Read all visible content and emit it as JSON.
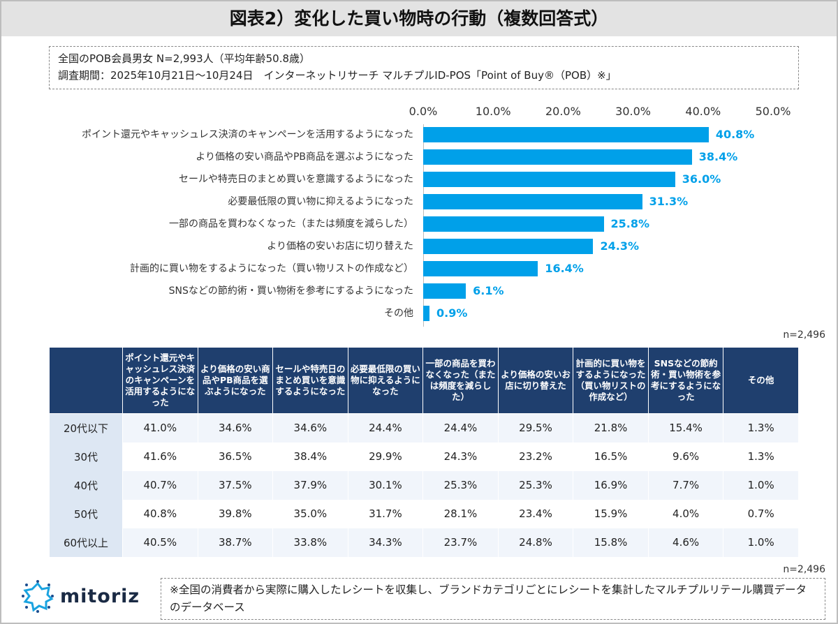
{
  "title": "図表2）変化した買い物時の行動（複数回答式）",
  "info": {
    "line1": "全国のPOB会員男女 N=2,993人（平均年齢50.8歳）",
    "line2": "調査期間：2025年10月21日～10月24日　インターネットリサーチ マルチプルID-POS「Point of Buy®（POB）※」"
  },
  "chart_data": {
    "type": "bar",
    "orientation": "horizontal",
    "categories": [
      "ポイント還元やキャッシュレス決済のキャンペーンを活用するようになった",
      "より価格の安い商品やPB商品を選ぶようになった",
      "セールや特売日のまとめ買いを意識するようになった",
      "必要最低限の買い物に抑えるようになった",
      "一部の商品を買わなくなった（または頻度を減らした）",
      "より価格の安いお店に切り替えた",
      "計画的に買い物をするようになった（買い物リストの作成など）",
      "SNSなどの節約術・買い物術を参考にするようになった",
      "その他"
    ],
    "values": [
      40.8,
      38.4,
      36.0,
      31.3,
      25.8,
      24.3,
      16.4,
      6.1,
      0.9
    ],
    "value_labels": [
      "40.8%",
      "38.4%",
      "36.0%",
      "31.3%",
      "25.8%",
      "24.3%",
      "16.4%",
      "6.1%",
      "0.9%"
    ],
    "ticks": [
      "0.0%",
      "10.0%",
      "20.0%",
      "30.0%",
      "40.0%",
      "50.0%"
    ],
    "xlim": [
      0,
      50
    ],
    "axis_position": "top",
    "color": "#00a0e9",
    "note": "n=2,496"
  },
  "table": {
    "headers": [
      "",
      "ポイント還元やキャッシュレス決済のキャンペーンを活用するようになった",
      "より価格の安い商品やPB商品を選ぶようになった",
      "セールや特売日のまとめ買いを意識するようになった",
      "必要最低限の買い物に抑えるようになった",
      "一部の商品を買わなくなった（または頻度を減らした）",
      "より価格の安いお店に切り替えた",
      "計画的に買い物をするようになった（買い物リストの作成など）",
      "SNSなどの節約術・買い物術を参考にするようになった",
      "その他"
    ],
    "rows": [
      [
        "20代以下",
        "41.0%",
        "34.6%",
        "34.6%",
        "24.4%",
        "24.4%",
        "29.5%",
        "21.8%",
        "15.4%",
        "1.3%"
      ],
      [
        "30代",
        "41.6%",
        "36.5%",
        "38.4%",
        "29.9%",
        "24.3%",
        "23.2%",
        "16.5%",
        "9.6%",
        "1.3%"
      ],
      [
        "40代",
        "40.7%",
        "37.5%",
        "37.9%",
        "30.1%",
        "25.3%",
        "25.3%",
        "16.9%",
        "7.7%",
        "1.0%"
      ],
      [
        "50代",
        "40.8%",
        "39.8%",
        "35.0%",
        "31.7%",
        "28.1%",
        "23.4%",
        "15.9%",
        "4.0%",
        "0.7%"
      ],
      [
        "60代以上",
        "40.5%",
        "38.7%",
        "33.8%",
        "34.3%",
        "23.7%",
        "24.8%",
        "15.8%",
        "4.6%",
        "1.0%"
      ]
    ],
    "header_color": "#1f3f6e",
    "note": "n=2,496"
  },
  "logo": {
    "text": "mitoriz",
    "icon": "starburst-logo-icon"
  },
  "footnote": "※全国の消費者から実際に購入したレシートを収集し、ブランドカテゴリごとにレシートを集計したマルチプルリテール購買データのデータベース"
}
